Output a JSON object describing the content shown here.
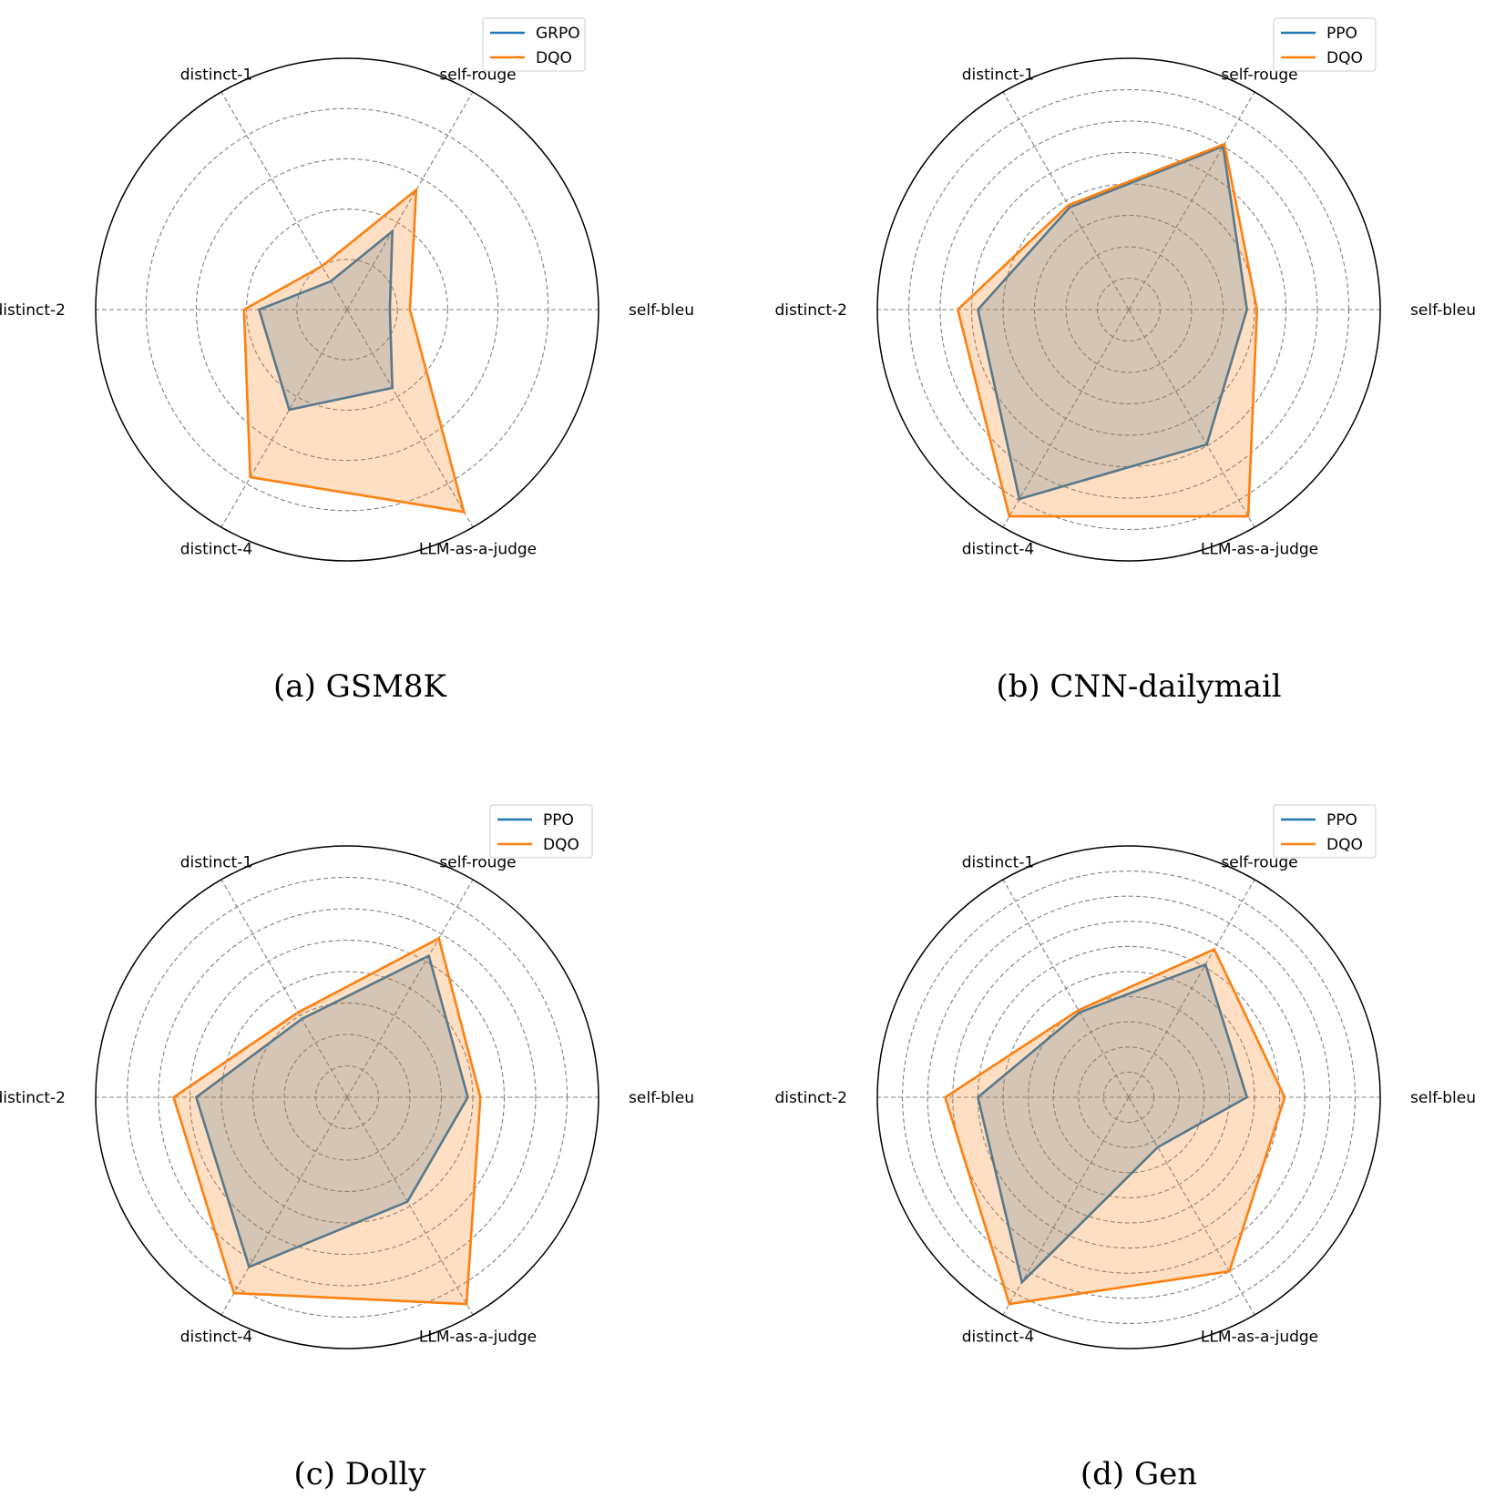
{
  "colors": {
    "series1": "#1f77b4",
    "series2": "#ff7f0e",
    "series2_fill": "#ff7f0e",
    "grid": "#808080",
    "outer": "#000000"
  },
  "chart_data": [
    {
      "type": "radar",
      "caption": "(a) GSM8K",
      "axes": [
        "self-bleu",
        "self-rouge",
        "distinct-1",
        "distinct-2",
        "distinct-4",
        "LLM-as-a-judge"
      ],
      "rlim": [
        0,
        1
      ],
      "grid_levels": [
        0.2,
        0.4,
        0.6,
        0.8,
        1.0
      ],
      "legend_position": "top-right",
      "series": [
        {
          "name": "GRPO",
          "values": [
            0.17,
            0.36,
            0.13,
            0.35,
            0.46,
            0.36
          ]
        },
        {
          "name": "DQO",
          "values": [
            0.25,
            0.55,
            0.2,
            0.41,
            0.77,
            0.93
          ]
        }
      ]
    },
    {
      "type": "radar",
      "caption": "(b) CNN-dailymail",
      "axes": [
        "self-bleu",
        "self-rouge",
        "distinct-1",
        "distinct-2",
        "distinct-4",
        "LLM-as-a-judge"
      ],
      "rlim": [
        0,
        1
      ],
      "grid_levels": [
        0.125,
        0.25,
        0.375,
        0.5,
        0.625,
        0.75,
        0.875,
        1.0
      ],
      "legend_position": "top-right",
      "series": [
        {
          "name": "PPO",
          "values": [
            0.47,
            0.75,
            0.47,
            0.6,
            0.87,
            0.62
          ]
        },
        {
          "name": "DQO",
          "values": [
            0.51,
            0.76,
            0.48,
            0.68,
            0.95,
            0.95
          ]
        }
      ]
    },
    {
      "type": "radar",
      "caption": "(c) Dolly",
      "axes": [
        "self-bleu",
        "self-rouge",
        "distinct-1",
        "distinct-2",
        "distinct-4",
        "LLM-as-a-judge"
      ],
      "rlim": [
        0,
        1
      ],
      "grid_levels": [
        0.125,
        0.25,
        0.375,
        0.5,
        0.625,
        0.75,
        0.875,
        1.0
      ],
      "legend_position": "top-right",
      "series": [
        {
          "name": "PPO",
          "values": [
            0.48,
            0.65,
            0.36,
            0.6,
            0.78,
            0.48
          ]
        },
        {
          "name": "DQO",
          "values": [
            0.53,
            0.73,
            0.39,
            0.69,
            0.9,
            0.95
          ]
        }
      ]
    },
    {
      "type": "radar",
      "caption": "(d) Gen",
      "axes": [
        "self-bleu",
        "self-rouge",
        "distinct-1",
        "distinct-2",
        "distinct-4",
        "LLM-as-a-judge"
      ],
      "rlim": [
        0,
        1
      ],
      "grid_levels": [
        0.1,
        0.2,
        0.3,
        0.4,
        0.5,
        0.6,
        0.7,
        0.8,
        0.9,
        1.0
      ],
      "legend_position": "top-right",
      "series": [
        {
          "name": "PPO",
          "values": [
            0.47,
            0.61,
            0.39,
            0.6,
            0.85,
            0.23
          ]
        },
        {
          "name": "DQO",
          "values": [
            0.62,
            0.68,
            0.4,
            0.73,
            0.95,
            0.8
          ]
        }
      ]
    }
  ]
}
